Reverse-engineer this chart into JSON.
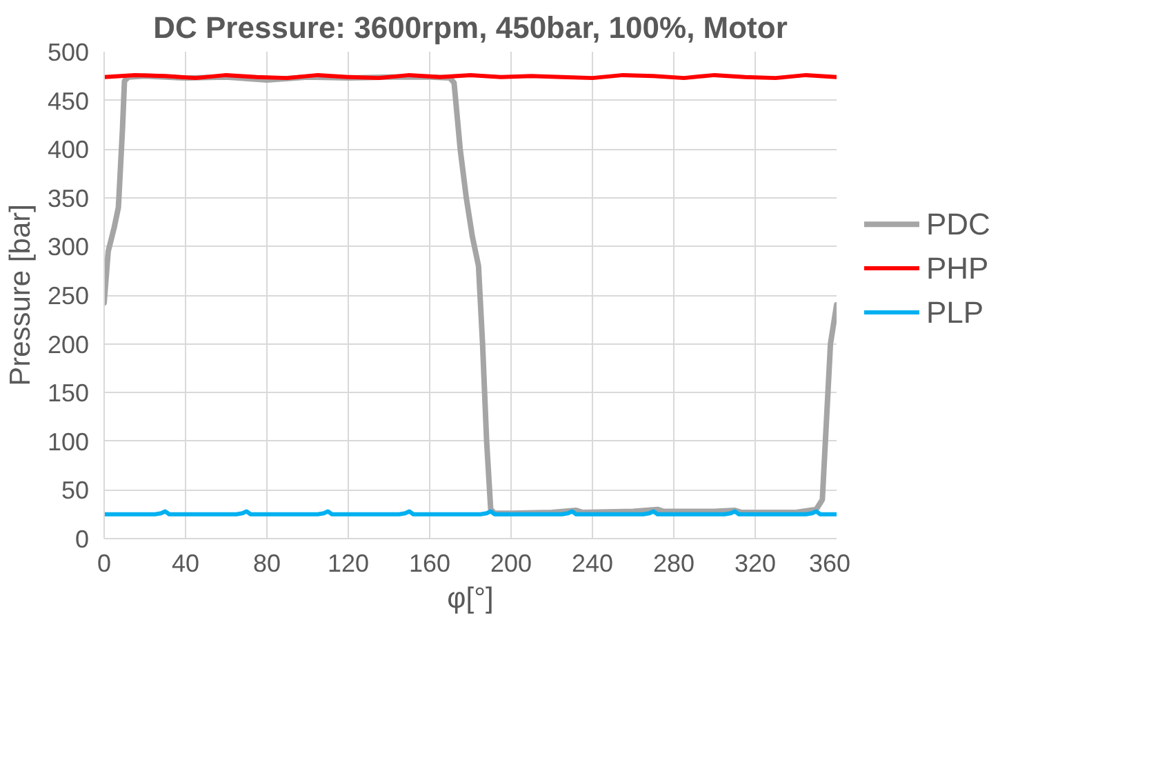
{
  "chart_data": {
    "type": "line",
    "title": "DC Pressure: 3600rpm, 450bar, 100%, Motor",
    "xlabel": "φ[°]",
    "ylabel": "Pressure [bar]",
    "xlim": [
      0,
      360
    ],
    "xticks": [
      0,
      40,
      80,
      120,
      160,
      200,
      240,
      280,
      320,
      360
    ],
    "ylim": [
      0,
      500
    ],
    "yticks": [
      0,
      50,
      100,
      150,
      200,
      250,
      300,
      350,
      400,
      450,
      500
    ],
    "grid": true,
    "legend": "right",
    "line_style": "solid",
    "marker": "none",
    "series": [
      {
        "name": "PDC",
        "color": "#a5a5a5",
        "x": [
          0,
          2,
          5,
          7,
          9,
          10,
          12,
          20,
          40,
          60,
          80,
          100,
          120,
          140,
          160,
          170,
          172,
          175,
          178,
          181,
          184,
          186,
          188,
          190,
          192,
          200,
          220,
          232,
          235,
          260,
          272,
          275,
          300,
          310,
          313,
          340,
          350,
          353,
          355,
          357,
          360
        ],
        "values": [
          242,
          295,
          320,
          340,
          420,
          470,
          474,
          475,
          473,
          474,
          471,
          474,
          473,
          474,
          474,
          473,
          468,
          400,
          350,
          310,
          280,
          200,
          100,
          30,
          26,
          26,
          27,
          29,
          27,
          28,
          30,
          28,
          28,
          29,
          27,
          27,
          30,
          40,
          120,
          200,
          240
        ]
      },
      {
        "name": "PHP",
        "color": "#ff0000",
        "x": [
          0,
          15,
          30,
          45,
          60,
          75,
          90,
          105,
          120,
          135,
          150,
          165,
          180,
          195,
          210,
          225,
          240,
          255,
          270,
          285,
          300,
          315,
          330,
          345,
          360
        ],
        "values": [
          474,
          476,
          475,
          473,
          476,
          474,
          473,
          476,
          474,
          473,
          476,
          474,
          476,
          474,
          475,
          474,
          473,
          476,
          475,
          473,
          476,
          474,
          473,
          476,
          474
        ]
      },
      {
        "name": "PLP",
        "color": "#00b0f0",
        "x": [
          0,
          25,
          28,
          30,
          32,
          65,
          68,
          70,
          72,
          105,
          108,
          110,
          112,
          145,
          148,
          150,
          152,
          185,
          188,
          190,
          192,
          225,
          228,
          230,
          232,
          265,
          268,
          270,
          272,
          305,
          308,
          310,
          312,
          345,
          348,
          350,
          352,
          360
        ],
        "values": [
          25,
          25,
          26,
          28,
          25,
          25,
          26,
          28,
          25,
          25,
          26,
          28,
          25,
          25,
          26,
          28,
          25,
          25,
          26,
          28,
          25,
          25,
          26,
          28,
          25,
          25,
          26,
          28,
          25,
          25,
          26,
          28,
          25,
          25,
          26,
          28,
          25,
          25
        ]
      }
    ]
  }
}
